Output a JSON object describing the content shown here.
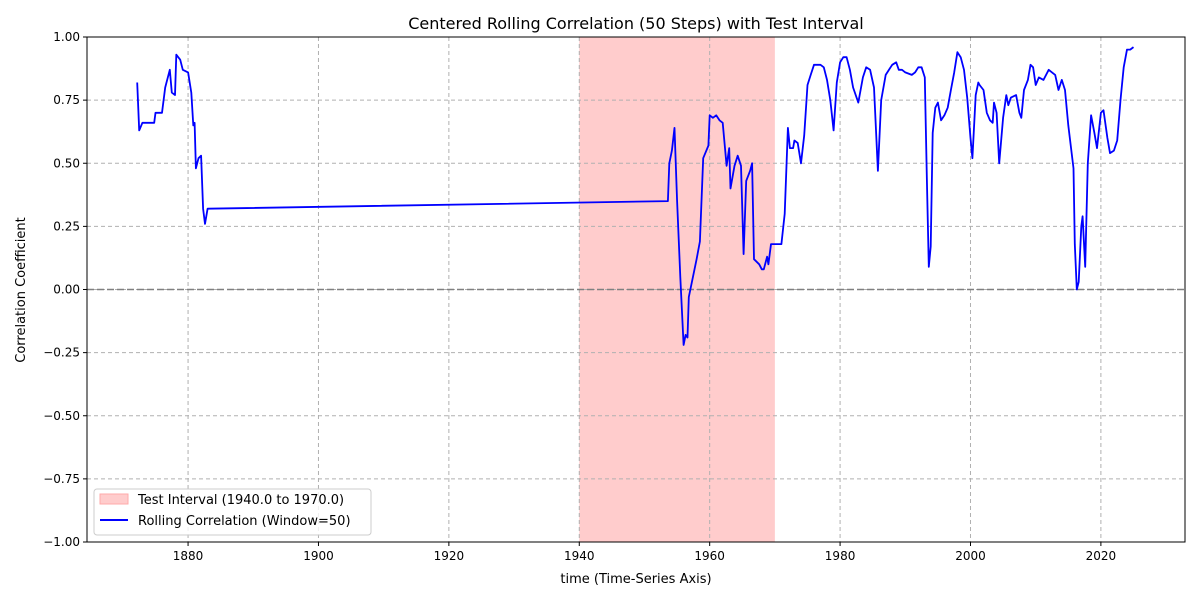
{
  "chart_data": {
    "type": "line",
    "title": "Centered Rolling Correlation (50 Steps) with Test Interval",
    "xlabel": "time (Time-Series Axis)",
    "ylabel": "Correlation Coefficient",
    "xlim": [
      1864.5,
      2032.9
    ],
    "ylim": [
      -1.0,
      1.0
    ],
    "xticks": [
      1880,
      1900,
      1920,
      1940,
      1960,
      1980,
      2000,
      2020
    ],
    "xtick_labels": [
      "1880",
      "1900",
      "1920",
      "1940",
      "1960",
      "1980",
      "2000",
      "2020"
    ],
    "yticks": [
      -1.0,
      -0.75,
      -0.5,
      -0.25,
      0.0,
      0.25,
      0.5,
      0.75,
      1.0
    ],
    "ytick_labels": [
      "−1.00",
      "−0.75",
      "−0.50",
      "−0.25",
      "0.00",
      "0.25",
      "0.50",
      "0.75",
      "1.00"
    ],
    "grid": true,
    "legend_position": "lower-left",
    "test_interval": {
      "start": 1940.0,
      "end": 1970.0,
      "label": "Test Interval (1940.0 to 1970.0)",
      "color": "#ffcccc"
    },
    "zero_line": 0.0,
    "series": [
      {
        "name": "Rolling Correlation (Window=50)",
        "color": "#0000ff",
        "points": [
          [
            1872.2,
            0.82
          ],
          [
            1872.5,
            0.63
          ],
          [
            1873,
            0.66
          ],
          [
            1874,
            0.66
          ],
          [
            1874.8,
            0.66
          ],
          [
            1875,
            0.7
          ],
          [
            1876,
            0.7
          ],
          [
            1876.5,
            0.8
          ],
          [
            1877.2,
            0.87
          ],
          [
            1877.5,
            0.78
          ],
          [
            1878,
            0.77
          ],
          [
            1878.2,
            0.93
          ],
          [
            1878.8,
            0.91
          ],
          [
            1879.2,
            0.87
          ],
          [
            1880,
            0.86
          ],
          [
            1880.5,
            0.78
          ],
          [
            1880.8,
            0.65
          ],
          [
            1881,
            0.66
          ],
          [
            1881.2,
            0.48
          ],
          [
            1881.6,
            0.52
          ],
          [
            1882,
            0.53
          ],
          [
            1882.3,
            0.32
          ],
          [
            1882.6,
            0.26
          ],
          [
            1883,
            0.32
          ],
          [
            1953.6,
            0.35
          ],
          [
            1953.8,
            0.5
          ],
          [
            1954.2,
            0.55
          ],
          [
            1954.6,
            0.64
          ],
          [
            1955,
            0.35
          ],
          [
            1955.5,
            0.05
          ],
          [
            1956,
            -0.22
          ],
          [
            1956.3,
            -0.18
          ],
          [
            1956.6,
            -0.19
          ],
          [
            1956.8,
            -0.03
          ],
          [
            1958,
            0.12
          ],
          [
            1958.5,
            0.19
          ],
          [
            1959,
            0.52
          ],
          [
            1959.8,
            0.57
          ],
          [
            1960,
            0.69
          ],
          [
            1960.5,
            0.68
          ],
          [
            1961,
            0.69
          ],
          [
            1961.5,
            0.67
          ],
          [
            1962,
            0.66
          ],
          [
            1962.6,
            0.49
          ],
          [
            1963,
            0.56
          ],
          [
            1963.2,
            0.4
          ],
          [
            1963.8,
            0.49
          ],
          [
            1964.3,
            0.53
          ],
          [
            1964.8,
            0.49
          ],
          [
            1965.2,
            0.14
          ],
          [
            1965.6,
            0.43
          ],
          [
            1966.2,
            0.47
          ],
          [
            1966.5,
            0.5
          ],
          [
            1966.8,
            0.12
          ],
          [
            1967.6,
            0.1
          ],
          [
            1968,
            0.08
          ],
          [
            1968.3,
            0.08
          ],
          [
            1968.8,
            0.13
          ],
          [
            1969,
            0.1
          ],
          [
            1969.4,
            0.18
          ],
          [
            1970,
            0.18
          ],
          [
            1971,
            0.18
          ],
          [
            1971.5,
            0.3
          ],
          [
            1972,
            0.64
          ],
          [
            1972.3,
            0.56
          ],
          [
            1972.8,
            0.56
          ],
          [
            1973,
            0.59
          ],
          [
            1973.5,
            0.58
          ],
          [
            1974,
            0.5
          ],
          [
            1974.5,
            0.61
          ],
          [
            1975,
            0.81
          ],
          [
            1975.5,
            0.85
          ],
          [
            1976,
            0.89
          ],
          [
            1977,
            0.89
          ],
          [
            1977.5,
            0.88
          ],
          [
            1978,
            0.83
          ],
          [
            1978.5,
            0.75
          ],
          [
            1979,
            0.63
          ],
          [
            1979.5,
            0.82
          ],
          [
            1980,
            0.9
          ],
          [
            1980.5,
            0.92
          ],
          [
            1981,
            0.92
          ],
          [
            1981.5,
            0.87
          ],
          [
            1982,
            0.8
          ],
          [
            1982.8,
            0.74
          ],
          [
            1983.5,
            0.84
          ],
          [
            1984,
            0.88
          ],
          [
            1984.6,
            0.87
          ],
          [
            1985.2,
            0.8
          ],
          [
            1985.8,
            0.47
          ],
          [
            1986.3,
            0.75
          ],
          [
            1987,
            0.85
          ],
          [
            1988,
            0.89
          ],
          [
            1988.6,
            0.9
          ],
          [
            1989,
            0.87
          ],
          [
            1989.5,
            0.87
          ],
          [
            1990,
            0.86
          ],
          [
            1991,
            0.85
          ],
          [
            1991.5,
            0.86
          ],
          [
            1992,
            0.88
          ],
          [
            1992.5,
            0.88
          ],
          [
            1993,
            0.84
          ],
          [
            1993.3,
            0.45
          ],
          [
            1993.6,
            0.09
          ],
          [
            1993.9,
            0.17
          ],
          [
            1994.2,
            0.62
          ],
          [
            1994.6,
            0.72
          ],
          [
            1995,
            0.74
          ],
          [
            1995.5,
            0.67
          ],
          [
            1996,
            0.69
          ],
          [
            1996.5,
            0.72
          ],
          [
            1997,
            0.79
          ],
          [
            1997.5,
            0.86
          ],
          [
            1998,
            0.94
          ],
          [
            1998.5,
            0.92
          ],
          [
            1999,
            0.87
          ],
          [
            1999.5,
            0.76
          ],
          [
            2000,
            0.6
          ],
          [
            2000.3,
            0.52
          ],
          [
            2000.8,
            0.77
          ],
          [
            2001.2,
            0.82
          ],
          [
            2001.4,
            0.81
          ],
          [
            2002,
            0.79
          ],
          [
            2002.5,
            0.7
          ],
          [
            2003,
            0.67
          ],
          [
            2003.4,
            0.66
          ],
          [
            2003.6,
            0.74
          ],
          [
            2004,
            0.7
          ],
          [
            2004.4,
            0.5
          ],
          [
            2005,
            0.68
          ],
          [
            2005.5,
            0.77
          ],
          [
            2005.8,
            0.73
          ],
          [
            2006.2,
            0.76
          ],
          [
            2007,
            0.77
          ],
          [
            2007.5,
            0.7
          ],
          [
            2007.8,
            0.68
          ],
          [
            2008.2,
            0.79
          ],
          [
            2008.8,
            0.83
          ],
          [
            2009.2,
            0.89
          ],
          [
            2009.6,
            0.88
          ],
          [
            2010,
            0.81
          ],
          [
            2010.5,
            0.84
          ],
          [
            2011.2,
            0.83
          ],
          [
            2012,
            0.87
          ],
          [
            2012.5,
            0.86
          ],
          [
            2013,
            0.85
          ],
          [
            2013.5,
            0.79
          ],
          [
            2014,
            0.83
          ],
          [
            2014.5,
            0.79
          ],
          [
            2015,
            0.65
          ],
          [
            2015.8,
            0.48
          ],
          [
            2016,
            0.18
          ],
          [
            2016.3,
            0.0
          ],
          [
            2016.6,
            0.03
          ],
          [
            2017,
            0.25
          ],
          [
            2017.2,
            0.29
          ],
          [
            2017.6,
            0.09
          ],
          [
            2018,
            0.5
          ],
          [
            2018.5,
            0.69
          ],
          [
            2019,
            0.62
          ],
          [
            2019.4,
            0.56
          ],
          [
            2020,
            0.7
          ],
          [
            2020.4,
            0.71
          ],
          [
            2021,
            0.6
          ],
          [
            2021.4,
            0.54
          ],
          [
            2022,
            0.55
          ],
          [
            2022.5,
            0.59
          ],
          [
            2023,
            0.75
          ],
          [
            2023.5,
            0.88
          ],
          [
            2024,
            0.95
          ],
          [
            2024.5,
            0.95
          ],
          [
            2025,
            0.96
          ]
        ]
      }
    ]
  }
}
